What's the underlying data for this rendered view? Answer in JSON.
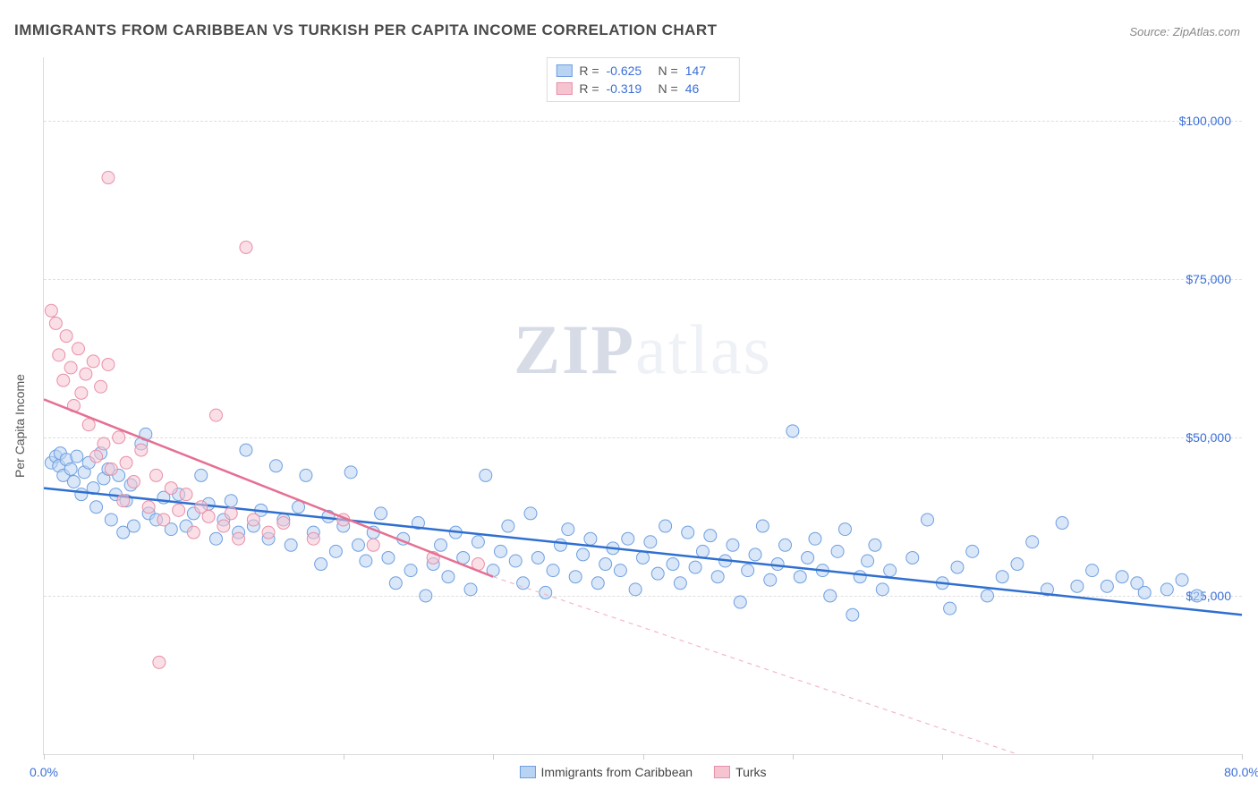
{
  "title": "IMMIGRANTS FROM CARIBBEAN VS TURKISH PER CAPITA INCOME CORRELATION CHART",
  "source": "Source: ZipAtlas.com",
  "watermark_a": "ZIP",
  "watermark_b": "atlas",
  "chart": {
    "type": "scatter",
    "ylabel": "Per Capita Income",
    "x_min": 0.0,
    "x_max": 80.0,
    "x_min_label": "0.0%",
    "x_max_label": "80.0%",
    "y_min": 0,
    "y_max": 110000,
    "y_ticks": [
      25000,
      50000,
      75000,
      100000
    ],
    "y_tick_labels": [
      "$25,000",
      "$50,000",
      "$75,000",
      "$100,000"
    ],
    "x_tick_positions": [
      0,
      10,
      20,
      30,
      40,
      50,
      60,
      70,
      80
    ],
    "grid_color": "#dedede",
    "background_color": "#ffffff",
    "marker_radius": 7,
    "marker_stroke_width": 1,
    "series": [
      {
        "name": "Immigrants from Caribbean",
        "short": "caribbean",
        "fill": "#b9d3f3",
        "stroke": "#6f9fe0",
        "fill_opacity": 0.55,
        "R": "-0.625",
        "N": "147",
        "trend": {
          "x1": 0,
          "y1": 42000,
          "x2": 80,
          "y2": 22000,
          "color": "#2f6fd0",
          "width": 2.5,
          "dash": ""
        },
        "points": [
          [
            0.5,
            46000
          ],
          [
            0.8,
            47000
          ],
          [
            1.0,
            45500
          ],
          [
            1.1,
            47500
          ],
          [
            1.3,
            44000
          ],
          [
            1.5,
            46500
          ],
          [
            1.8,
            45000
          ],
          [
            2.0,
            43000
          ],
          [
            2.2,
            47000
          ],
          [
            2.5,
            41000
          ],
          [
            2.7,
            44500
          ],
          [
            3.0,
            46000
          ],
          [
            3.3,
            42000
          ],
          [
            3.5,
            39000
          ],
          [
            3.8,
            47500
          ],
          [
            4.0,
            43500
          ],
          [
            4.3,
            45000
          ],
          [
            4.5,
            37000
          ],
          [
            4.8,
            41000
          ],
          [
            5.0,
            44000
          ],
          [
            5.3,
            35000
          ],
          [
            5.5,
            40000
          ],
          [
            5.8,
            42500
          ],
          [
            6.0,
            36000
          ],
          [
            6.5,
            49000
          ],
          [
            6.8,
            50500
          ],
          [
            7.0,
            38000
          ],
          [
            7.5,
            37000
          ],
          [
            8.0,
            40500
          ],
          [
            8.5,
            35500
          ],
          [
            9.0,
            41000
          ],
          [
            9.5,
            36000
          ],
          [
            10.0,
            38000
          ],
          [
            10.5,
            44000
          ],
          [
            11.0,
            39500
          ],
          [
            11.5,
            34000
          ],
          [
            12.0,
            37000
          ],
          [
            12.5,
            40000
          ],
          [
            13.0,
            35000
          ],
          [
            13.5,
            48000
          ],
          [
            14.0,
            36000
          ],
          [
            14.5,
            38500
          ],
          [
            15.0,
            34000
          ],
          [
            15.5,
            45500
          ],
          [
            16.0,
            37000
          ],
          [
            16.5,
            33000
          ],
          [
            17.0,
            39000
          ],
          [
            17.5,
            44000
          ],
          [
            18.0,
            35000
          ],
          [
            18.5,
            30000
          ],
          [
            19.0,
            37500
          ],
          [
            19.5,
            32000
          ],
          [
            20.0,
            36000
          ],
          [
            20.5,
            44500
          ],
          [
            21.0,
            33000
          ],
          [
            21.5,
            30500
          ],
          [
            22.0,
            35000
          ],
          [
            22.5,
            38000
          ],
          [
            23.0,
            31000
          ],
          [
            23.5,
            27000
          ],
          [
            24.0,
            34000
          ],
          [
            24.5,
            29000
          ],
          [
            25.0,
            36500
          ],
          [
            25.5,
            25000
          ],
          [
            26.0,
            30000
          ],
          [
            26.5,
            33000
          ],
          [
            27.0,
            28000
          ],
          [
            27.5,
            35000
          ],
          [
            28.0,
            31000
          ],
          [
            28.5,
            26000
          ],
          [
            29.0,
            33500
          ],
          [
            29.5,
            44000
          ],
          [
            30.0,
            29000
          ],
          [
            30.5,
            32000
          ],
          [
            31.0,
            36000
          ],
          [
            31.5,
            30500
          ],
          [
            32.0,
            27000
          ],
          [
            32.5,
            38000
          ],
          [
            33.0,
            31000
          ],
          [
            33.5,
            25500
          ],
          [
            34.0,
            29000
          ],
          [
            34.5,
            33000
          ],
          [
            35.0,
            35500
          ],
          [
            35.5,
            28000
          ],
          [
            36.0,
            31500
          ],
          [
            36.5,
            34000
          ],
          [
            37.0,
            27000
          ],
          [
            37.5,
            30000
          ],
          [
            38.0,
            32500
          ],
          [
            38.5,
            29000
          ],
          [
            39.0,
            34000
          ],
          [
            39.5,
            26000
          ],
          [
            40.0,
            31000
          ],
          [
            40.5,
            33500
          ],
          [
            41.0,
            28500
          ],
          [
            41.5,
            36000
          ],
          [
            42.0,
            30000
          ],
          [
            42.5,
            27000
          ],
          [
            43.0,
            35000
          ],
          [
            43.5,
            29500
          ],
          [
            44.0,
            32000
          ],
          [
            44.5,
            34500
          ],
          [
            45.0,
            28000
          ],
          [
            45.5,
            30500
          ],
          [
            46.0,
            33000
          ],
          [
            46.5,
            24000
          ],
          [
            47.0,
            29000
          ],
          [
            47.5,
            31500
          ],
          [
            48.0,
            36000
          ],
          [
            48.5,
            27500
          ],
          [
            49.0,
            30000
          ],
          [
            49.5,
            33000
          ],
          [
            50.0,
            51000
          ],
          [
            50.5,
            28000
          ],
          [
            51.0,
            31000
          ],
          [
            51.5,
            34000
          ],
          [
            52.0,
            29000
          ],
          [
            52.5,
            25000
          ],
          [
            53.0,
            32000
          ],
          [
            53.5,
            35500
          ],
          [
            54.0,
            22000
          ],
          [
            54.5,
            28000
          ],
          [
            55.0,
            30500
          ],
          [
            55.5,
            33000
          ],
          [
            56.0,
            26000
          ],
          [
            56.5,
            29000
          ],
          [
            58.0,
            31000
          ],
          [
            59.0,
            37000
          ],
          [
            60.0,
            27000
          ],
          [
            60.5,
            23000
          ],
          [
            61.0,
            29500
          ],
          [
            62.0,
            32000
          ],
          [
            63.0,
            25000
          ],
          [
            64.0,
            28000
          ],
          [
            65.0,
            30000
          ],
          [
            66.0,
            33500
          ],
          [
            67.0,
            26000
          ],
          [
            68.0,
            36500
          ],
          [
            69.0,
            26500
          ],
          [
            70.0,
            29000
          ],
          [
            71.0,
            26500
          ],
          [
            72.0,
            28000
          ],
          [
            73.0,
            27000
          ],
          [
            73.5,
            25500
          ],
          [
            75.0,
            26000
          ],
          [
            76.0,
            27500
          ],
          [
            77.0,
            25000
          ]
        ]
      },
      {
        "name": "Turks",
        "short": "turks",
        "fill": "#f6c4d1",
        "stroke": "#e88fa8",
        "fill_opacity": 0.55,
        "R": "-0.319",
        "N": "46",
        "trend": {
          "x1": 0,
          "y1": 56000,
          "x2": 30,
          "y2": 28000,
          "color": "#e66f93",
          "width": 2.5,
          "dash": ""
        },
        "trend_ext": {
          "x1": 30,
          "y1": 28000,
          "x2": 65,
          "y2": 0,
          "color": "#f3b8c7",
          "width": 1.2,
          "dash": "5,5"
        },
        "points": [
          [
            0.5,
            70000
          ],
          [
            0.8,
            68000
          ],
          [
            1.0,
            63000
          ],
          [
            1.3,
            59000
          ],
          [
            1.5,
            66000
          ],
          [
            1.8,
            61000
          ],
          [
            2.0,
            55000
          ],
          [
            2.3,
            64000
          ],
          [
            2.5,
            57000
          ],
          [
            2.8,
            60000
          ],
          [
            3.0,
            52000
          ],
          [
            3.3,
            62000
          ],
          [
            3.5,
            47000
          ],
          [
            3.8,
            58000
          ],
          [
            4.0,
            49000
          ],
          [
            4.3,
            61500
          ],
          [
            4.5,
            45000
          ],
          [
            4.3,
            91000
          ],
          [
            5.0,
            50000
          ],
          [
            5.3,
            40000
          ],
          [
            5.5,
            46000
          ],
          [
            6.0,
            43000
          ],
          [
            6.5,
            48000
          ],
          [
            7.0,
            39000
          ],
          [
            7.5,
            44000
          ],
          [
            7.7,
            14500
          ],
          [
            8.0,
            37000
          ],
          [
            8.5,
            42000
          ],
          [
            9.0,
            38500
          ],
          [
            9.5,
            41000
          ],
          [
            10.0,
            35000
          ],
          [
            10.5,
            39000
          ],
          [
            11.0,
            37500
          ],
          [
            11.5,
            53500
          ],
          [
            12.0,
            36000
          ],
          [
            12.5,
            38000
          ],
          [
            13.0,
            34000
          ],
          [
            13.5,
            80000
          ],
          [
            14.0,
            37000
          ],
          [
            15.0,
            35000
          ],
          [
            16.0,
            36500
          ],
          [
            18.0,
            34000
          ],
          [
            20.0,
            37000
          ],
          [
            22.0,
            33000
          ],
          [
            26.0,
            31000
          ],
          [
            29.0,
            30000
          ]
        ]
      }
    ]
  }
}
